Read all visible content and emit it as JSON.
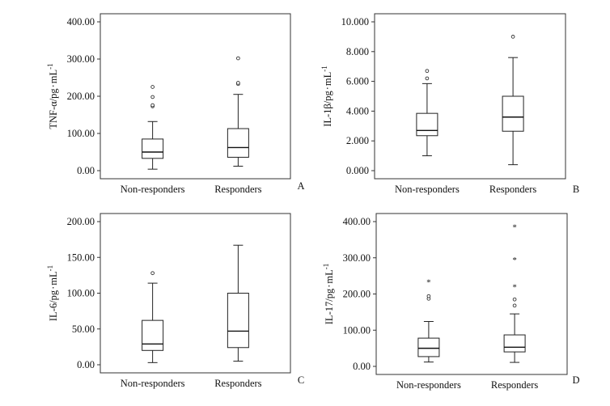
{
  "chart_data": [
    {
      "type": "boxplot",
      "panel_label": "A",
      "ylabel_main": "TNF-α/pg",
      "ylabel_unit": "mL",
      "ylabel_exp": "-1",
      "ylim": [
        0,
        400
      ],
      "yticks": [
        0,
        100,
        200,
        300,
        400
      ],
      "tick_labels": [
        "0.00",
        "100.00",
        "200.00",
        "300.00",
        "400.00"
      ],
      "categories": [
        "Non-responders",
        "Responders"
      ],
      "boxes": [
        {
          "min": 4,
          "q1": 33,
          "median": 50,
          "q3": 85,
          "max": 132,
          "outliers": [
            173,
            176,
            198,
            225
          ],
          "extremes": []
        },
        {
          "min": 12,
          "q1": 36,
          "median": 62,
          "q3": 113,
          "max": 205,
          "outliers": [
            233,
            236,
            302
          ],
          "extremes": []
        }
      ]
    },
    {
      "type": "boxplot",
      "panel_label": "B",
      "ylabel_main": "IL-1β/pg",
      "ylabel_unit": "mL",
      "ylabel_exp": "-1",
      "ylim": [
        0,
        10
      ],
      "yticks": [
        0,
        2,
        4,
        6,
        8,
        10
      ],
      "tick_labels": [
        "0.000",
        "2.000",
        "4.000",
        "6.000",
        "8.000",
        "10.000"
      ],
      "categories": [
        "Non-responders",
        "Responders"
      ],
      "boxes": [
        {
          "min": 1.0,
          "q1": 2.35,
          "median": 2.7,
          "q3": 3.85,
          "max": 5.85,
          "outliers": [
            6.2,
            6.7
          ],
          "extremes": []
        },
        {
          "min": 0.4,
          "q1": 2.65,
          "median": 3.6,
          "q3": 5.0,
          "max": 7.6,
          "outliers": [
            9.0
          ],
          "extremes": []
        }
      ]
    },
    {
      "type": "boxplot",
      "panel_label": "C",
      "ylabel_main": "IL-6/pg",
      "ylabel_unit": "mL",
      "ylabel_exp": "-1",
      "ylim": [
        0,
        200
      ],
      "yticks": [
        0,
        50,
        100,
        150,
        200
      ],
      "tick_labels": [
        "0.00",
        "50.00",
        "100.00",
        "150.00",
        "200.00"
      ],
      "categories": [
        "Non-responders",
        "Responders"
      ],
      "boxes": [
        {
          "min": 3,
          "q1": 20,
          "median": 29,
          "q3": 62,
          "max": 114,
          "outliers": [
            128
          ],
          "extremes": []
        },
        {
          "min": 5,
          "q1": 24,
          "median": 47,
          "q3": 100,
          "max": 167,
          "outliers": [],
          "extremes": []
        }
      ]
    },
    {
      "type": "boxplot",
      "panel_label": "D",
      "ylabel_main": "IL-17/pg",
      "ylabel_unit": "mL",
      "ylabel_exp": "-1",
      "ylim": [
        0,
        400
      ],
      "yticks": [
        0,
        100,
        200,
        300,
        400
      ],
      "tick_labels": [
        "0.00",
        "100.00",
        "200.00",
        "300.00",
        "400.00"
      ],
      "categories": [
        "Non-responders",
        "Responders"
      ],
      "boxes": [
        {
          "min": 12,
          "q1": 27,
          "median": 50,
          "q3": 78,
          "max": 124,
          "outliers": [
            187,
            194
          ],
          "extremes": [
            233
          ]
        },
        {
          "min": 11,
          "q1": 40,
          "median": 53,
          "q3": 87,
          "max": 145,
          "outliers": [
            168,
            185
          ],
          "extremes": [
            220,
            295,
            386
          ]
        }
      ]
    }
  ]
}
